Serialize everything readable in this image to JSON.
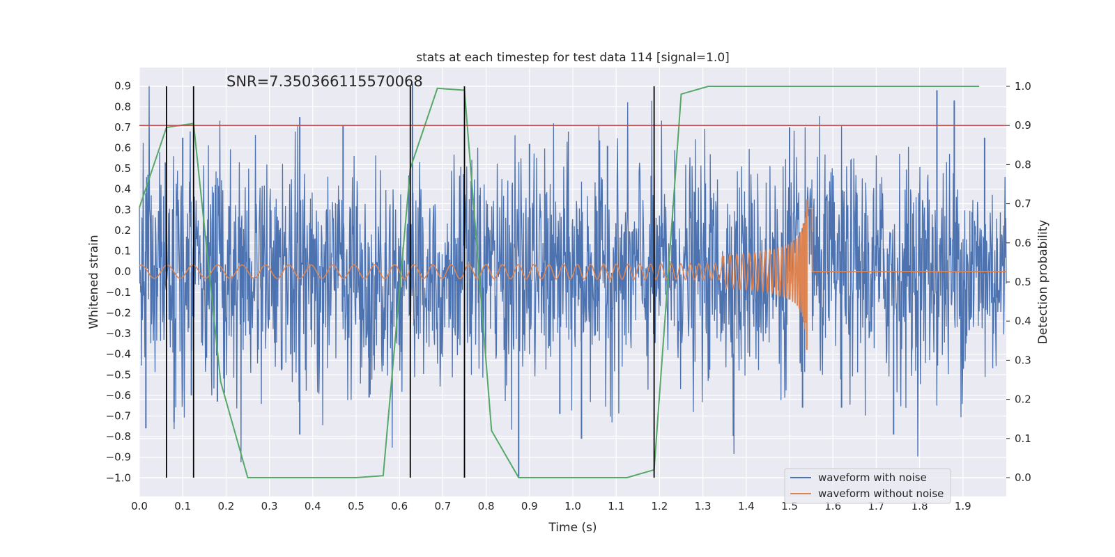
{
  "chart_data": {
    "type": "line",
    "title": "stats at each timestep for test data 114 [signal=1.0]",
    "xlabel": "Time (s)",
    "ylabel": "Whitened strain",
    "y2label": "Detection probability",
    "annotation": "SNR=7.350366115570068",
    "xlim": [
      0.0,
      2.0
    ],
    "ylim": [
      -1.09,
      0.99
    ],
    "y2lim": [
      -0.048,
      1.048
    ],
    "grid": true,
    "legend_position": "lower right",
    "x_ticks": [
      "0.0",
      "0.1",
      "0.2",
      "0.3",
      "0.4",
      "0.5",
      "0.6",
      "0.7",
      "0.8",
      "0.9",
      "1.0",
      "1.1",
      "1.2",
      "1.3",
      "1.4",
      "1.5",
      "1.6",
      "1.7",
      "1.8",
      "1.9"
    ],
    "y_ticks": [
      "0.9",
      "0.8",
      "0.7",
      "0.6",
      "0.5",
      "0.4",
      "0.3",
      "0.2",
      "0.1",
      "0.0",
      "−0.1",
      "−0.2",
      "−0.3",
      "−0.4",
      "−0.5",
      "−0.6",
      "−0.7",
      "−0.8",
      "−0.9",
      "−1.0"
    ],
    "y2_ticks": [
      "1.0",
      "0.9",
      "0.8",
      "0.7",
      "0.6",
      "0.5",
      "0.4",
      "0.3",
      "0.2",
      "0.1",
      "0.0"
    ],
    "series": [
      {
        "name": "waveform with noise",
        "color": "#4c72b0",
        "axis": "left",
        "t_start": 0.0,
        "t_end": 2.0,
        "noise_std": 0.27,
        "peaks": [
          {
            "x": 0.015,
            "y": 0.38
          },
          {
            "x": 0.015,
            "y": -0.76
          },
          {
            "x": 0.06,
            "y": 0.53
          },
          {
            "x": 0.08,
            "y": -0.73
          },
          {
            "x": 0.1,
            "y": 0.65
          },
          {
            "x": 0.12,
            "y": -0.6
          },
          {
            "x": 0.18,
            "y": -0.63
          },
          {
            "x": 0.37,
            "y": 0.75
          },
          {
            "x": 0.37,
            "y": -0.79
          },
          {
            "x": 0.47,
            "y": 0.71
          },
          {
            "x": 0.53,
            "y": -0.61
          },
          {
            "x": 0.63,
            "y": 0.91
          },
          {
            "x": 0.875,
            "y": -1.0
          },
          {
            "x": 0.9,
            "y": 0.62
          },
          {
            "x": 0.97,
            "y": -0.69
          },
          {
            "x": 1.02,
            "y": -0.81
          },
          {
            "x": 1.08,
            "y": 0.61
          },
          {
            "x": 1.5,
            "y": 0.7
          },
          {
            "x": 1.53,
            "y": -0.66
          },
          {
            "x": 1.62,
            "y": -0.66
          },
          {
            "x": 1.74,
            "y": -0.79
          },
          {
            "x": 1.84,
            "y": 0.88
          },
          {
            "x": 1.88,
            "y": 0.83
          },
          {
            "x": 1.95,
            "y": 0.65
          }
        ]
      },
      {
        "name": "waveform without noise",
        "color": "#dd8452",
        "axis": "left",
        "t_end": 2.0,
        "t_merger": 1.54,
        "base_amplitude": 0.02,
        "peak_amplitude": 0.35,
        "ringdown_min": -0.38,
        "f0": 11.0,
        "tau0": 1.54
      },
      {
        "name": "detection probability",
        "color": "#55a868",
        "axis": "right",
        "x": [
          0.0,
          0.0625,
          0.125,
          0.1875,
          0.25,
          0.3125,
          0.375,
          0.4375,
          0.5,
          0.5625,
          0.625,
          0.6875,
          0.75,
          0.8125,
          0.875,
          0.9375,
          1.0,
          1.0625,
          1.125,
          1.1875,
          1.25,
          1.3125,
          1.375,
          1.4375,
          1.5,
          1.5625,
          1.625,
          1.6875,
          1.75,
          1.8125,
          1.875,
          1.9375
        ],
        "values": [
          0.69,
          0.895,
          0.905,
          0.245,
          0.0,
          0.0,
          0.0,
          0.0,
          0.0,
          0.005,
          0.79,
          0.995,
          0.99,
          0.12,
          0.0,
          0.0,
          0.0,
          0.0,
          0.0,
          0.02,
          0.98,
          1.0,
          1.0,
          1.0,
          1.0,
          1.0,
          1.0,
          1.0,
          1.0,
          1.0,
          1.0,
          1.0
        ]
      }
    ],
    "threshold": {
      "axis": "right",
      "value": 0.9,
      "color": "#c44e52"
    },
    "detections": {
      "x": [
        0.0625,
        0.125,
        0.625,
        0.75,
        1.1875
      ],
      "color": "#000000"
    },
    "legend": [
      {
        "label": "waveform with noise",
        "color": "#4c72b0"
      },
      {
        "label": "waveform without noise",
        "color": "#dd8452"
      }
    ],
    "colors": {
      "plot_background": "#eaeaf2",
      "grid": "#ffffff",
      "text": "#262626"
    }
  }
}
